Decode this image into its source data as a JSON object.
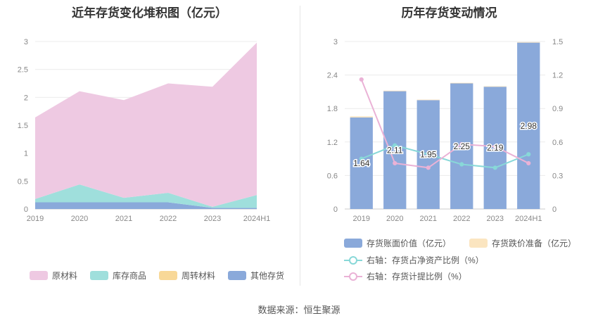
{
  "source_text": "数据来源：恒生聚源",
  "chart_data": [
    {
      "type": "area",
      "stacked": true,
      "title": "近年存货变化堆积图（亿元）",
      "categories": [
        "2019",
        "2020",
        "2021",
        "2022",
        "2023",
        "2024H1"
      ],
      "yticks": [
        "0",
        "0.5",
        "1",
        "1.5",
        "2",
        "2.5",
        "3"
      ],
      "ylim": [
        0,
        3
      ],
      "grid": true,
      "legend_position": "bottom",
      "series": [
        {
          "name": "其他存货",
          "color": "#8aa9da",
          "values": [
            0.12,
            0.12,
            0.12,
            0.12,
            0.02,
            0.02
          ]
        },
        {
          "name": "周转材料",
          "color": "#f8d898",
          "values": [
            0.0,
            0.0,
            0.0,
            0.0,
            0.0,
            0.0
          ]
        },
        {
          "name": "库存商品",
          "color": "#9fdfdc",
          "values": [
            0.06,
            0.32,
            0.08,
            0.17,
            0.02,
            0.23
          ]
        },
        {
          "name": "原材料",
          "color": "#eec9e2",
          "values": [
            1.46,
            1.67,
            1.75,
            1.96,
            2.15,
            2.73
          ]
        }
      ],
      "legend_order": [
        "原材料",
        "库存商品",
        "周转材料",
        "其他存货"
      ]
    },
    {
      "type": "bar",
      "title": "历年存货变动情况",
      "categories": [
        "2019",
        "2020",
        "2021",
        "2022",
        "2023",
        "2024H1"
      ],
      "yticks_left": [
        "0",
        "0.6",
        "1.2",
        "1.8",
        "2.4",
        "3"
      ],
      "yticks_right": [
        "0",
        "0.3",
        "0.6",
        "0.9",
        "1.2",
        "1.5"
      ],
      "ylim_left": [
        0,
        3
      ],
      "ylim_right": [
        0,
        1.5
      ],
      "grid": true,
      "legend_position": "bottom",
      "bars": [
        {
          "name": "存货账面价值（亿元）",
          "color": "#8aa9da",
          "values": [
            1.64,
            2.11,
            1.95,
            2.25,
            2.19,
            2.98
          ],
          "labels": [
            "1.64",
            "2.11",
            "1.95",
            "2.25",
            "2.19",
            "2.98"
          ]
        },
        {
          "name": "存货跌价准备（亿元）",
          "color": "#fbe5c0",
          "values": [
            0.02,
            0.01,
            0.01,
            0.01,
            0.01,
            0.01
          ]
        }
      ],
      "lines": [
        {
          "name": "右轴：存货占净资产比例（%）",
          "color": "#88d8d8",
          "values": [
            0.45,
            0.57,
            0.49,
            0.4,
            0.37,
            0.49
          ]
        },
        {
          "name": "右轴：存货计提比例（%）",
          "color": "#eab2d6",
          "values": [
            1.16,
            0.41,
            0.37,
            0.58,
            0.56,
            0.41
          ]
        }
      ]
    }
  ]
}
